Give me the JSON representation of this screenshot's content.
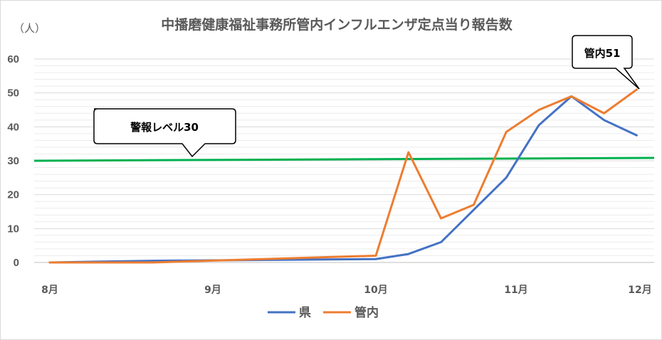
{
  "chart_data": {
    "type": "line",
    "title": "中播磨健康福祉事務所管内インフルエンザ定点当り報告数",
    "ylabel": "（人）",
    "xlabel": "",
    "ylim": [
      0,
      60
    ],
    "yticks": [
      0,
      10,
      20,
      30,
      40,
      50,
      60
    ],
    "grid": true,
    "legend_position": "bottom",
    "x_ticks": [
      {
        "label": "8月",
        "x": 0
      },
      {
        "label": "9月",
        "x": 10
      },
      {
        "label": "10月",
        "x": 20
      },
      {
        "label": "11月",
        "x": 28.6
      },
      {
        "label": "12月",
        "x": 36.2
      }
    ],
    "x": [
      0,
      6.3,
      20,
      22,
      24,
      26,
      28,
      30,
      32,
      34,
      36
    ],
    "series": [
      {
        "name": "県",
        "color": "#4472C4",
        "values": [
          0,
          0.5,
          1,
          2.5,
          6,
          15.5,
          25,
          40.5,
          49,
          42,
          37.5
        ]
      },
      {
        "name": "管内",
        "color": "#ED7D31",
        "values": [
          0,
          0,
          2,
          32.5,
          13,
          17,
          38.5,
          45,
          49,
          44,
          51
        ]
      }
    ],
    "threshold": {
      "value": 30,
      "color": "#00B050"
    },
    "annotations": [
      {
        "text": "警報レベル30"
      },
      {
        "text": "管内51"
      }
    ]
  }
}
